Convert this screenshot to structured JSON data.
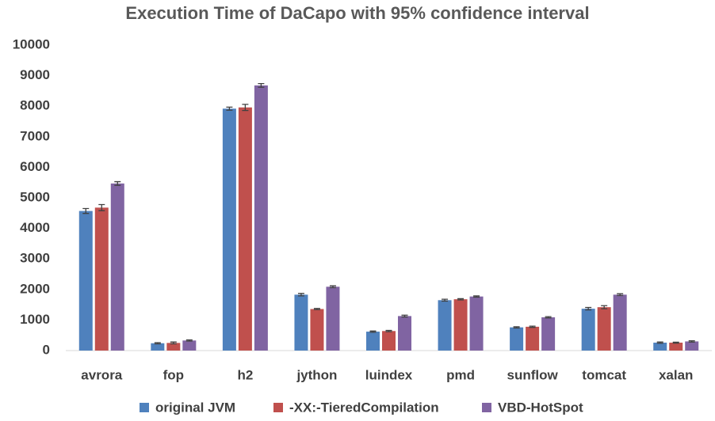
{
  "chart_data": {
    "type": "bar",
    "title": "Execution Time of DaCapo with 95% confidence interval",
    "categories": [
      "avrora",
      "fop",
      "h2",
      "jython",
      "luindex",
      "pmd",
      "sunflow",
      "tomcat",
      "xalan"
    ],
    "series": [
      {
        "name": "original JVM",
        "color": "#4f81bd",
        "values": [
          4570,
          240,
          7920,
          1830,
          620,
          1650,
          760,
          1370,
          260
        ],
        "errors": [
          80,
          20,
          50,
          40,
          20,
          30,
          20,
          40,
          20
        ]
      },
      {
        "name": "-XX:-TieredCompilation",
        "color": "#c0504d",
        "values": [
          4680,
          250,
          7960,
          1360,
          640,
          1680,
          780,
          1420,
          260
        ],
        "errors": [
          100,
          30,
          100,
          20,
          20,
          20,
          20,
          50,
          15
        ]
      },
      {
        "name": "VBD-HotSpot",
        "color": "#8064a2",
        "values": [
          5470,
          330,
          8680,
          2090,
          1130,
          1770,
          1090,
          1830,
          300
        ],
        "errors": [
          60,
          20,
          60,
          30,
          30,
          20,
          20,
          30,
          20
        ]
      }
    ],
    "ylim": [
      0,
      10000
    ],
    "yticks": [
      0,
      1000,
      2000,
      3000,
      4000,
      5000,
      6000,
      7000,
      8000,
      9000,
      10000
    ],
    "grid": false,
    "legend": "bottom"
  }
}
